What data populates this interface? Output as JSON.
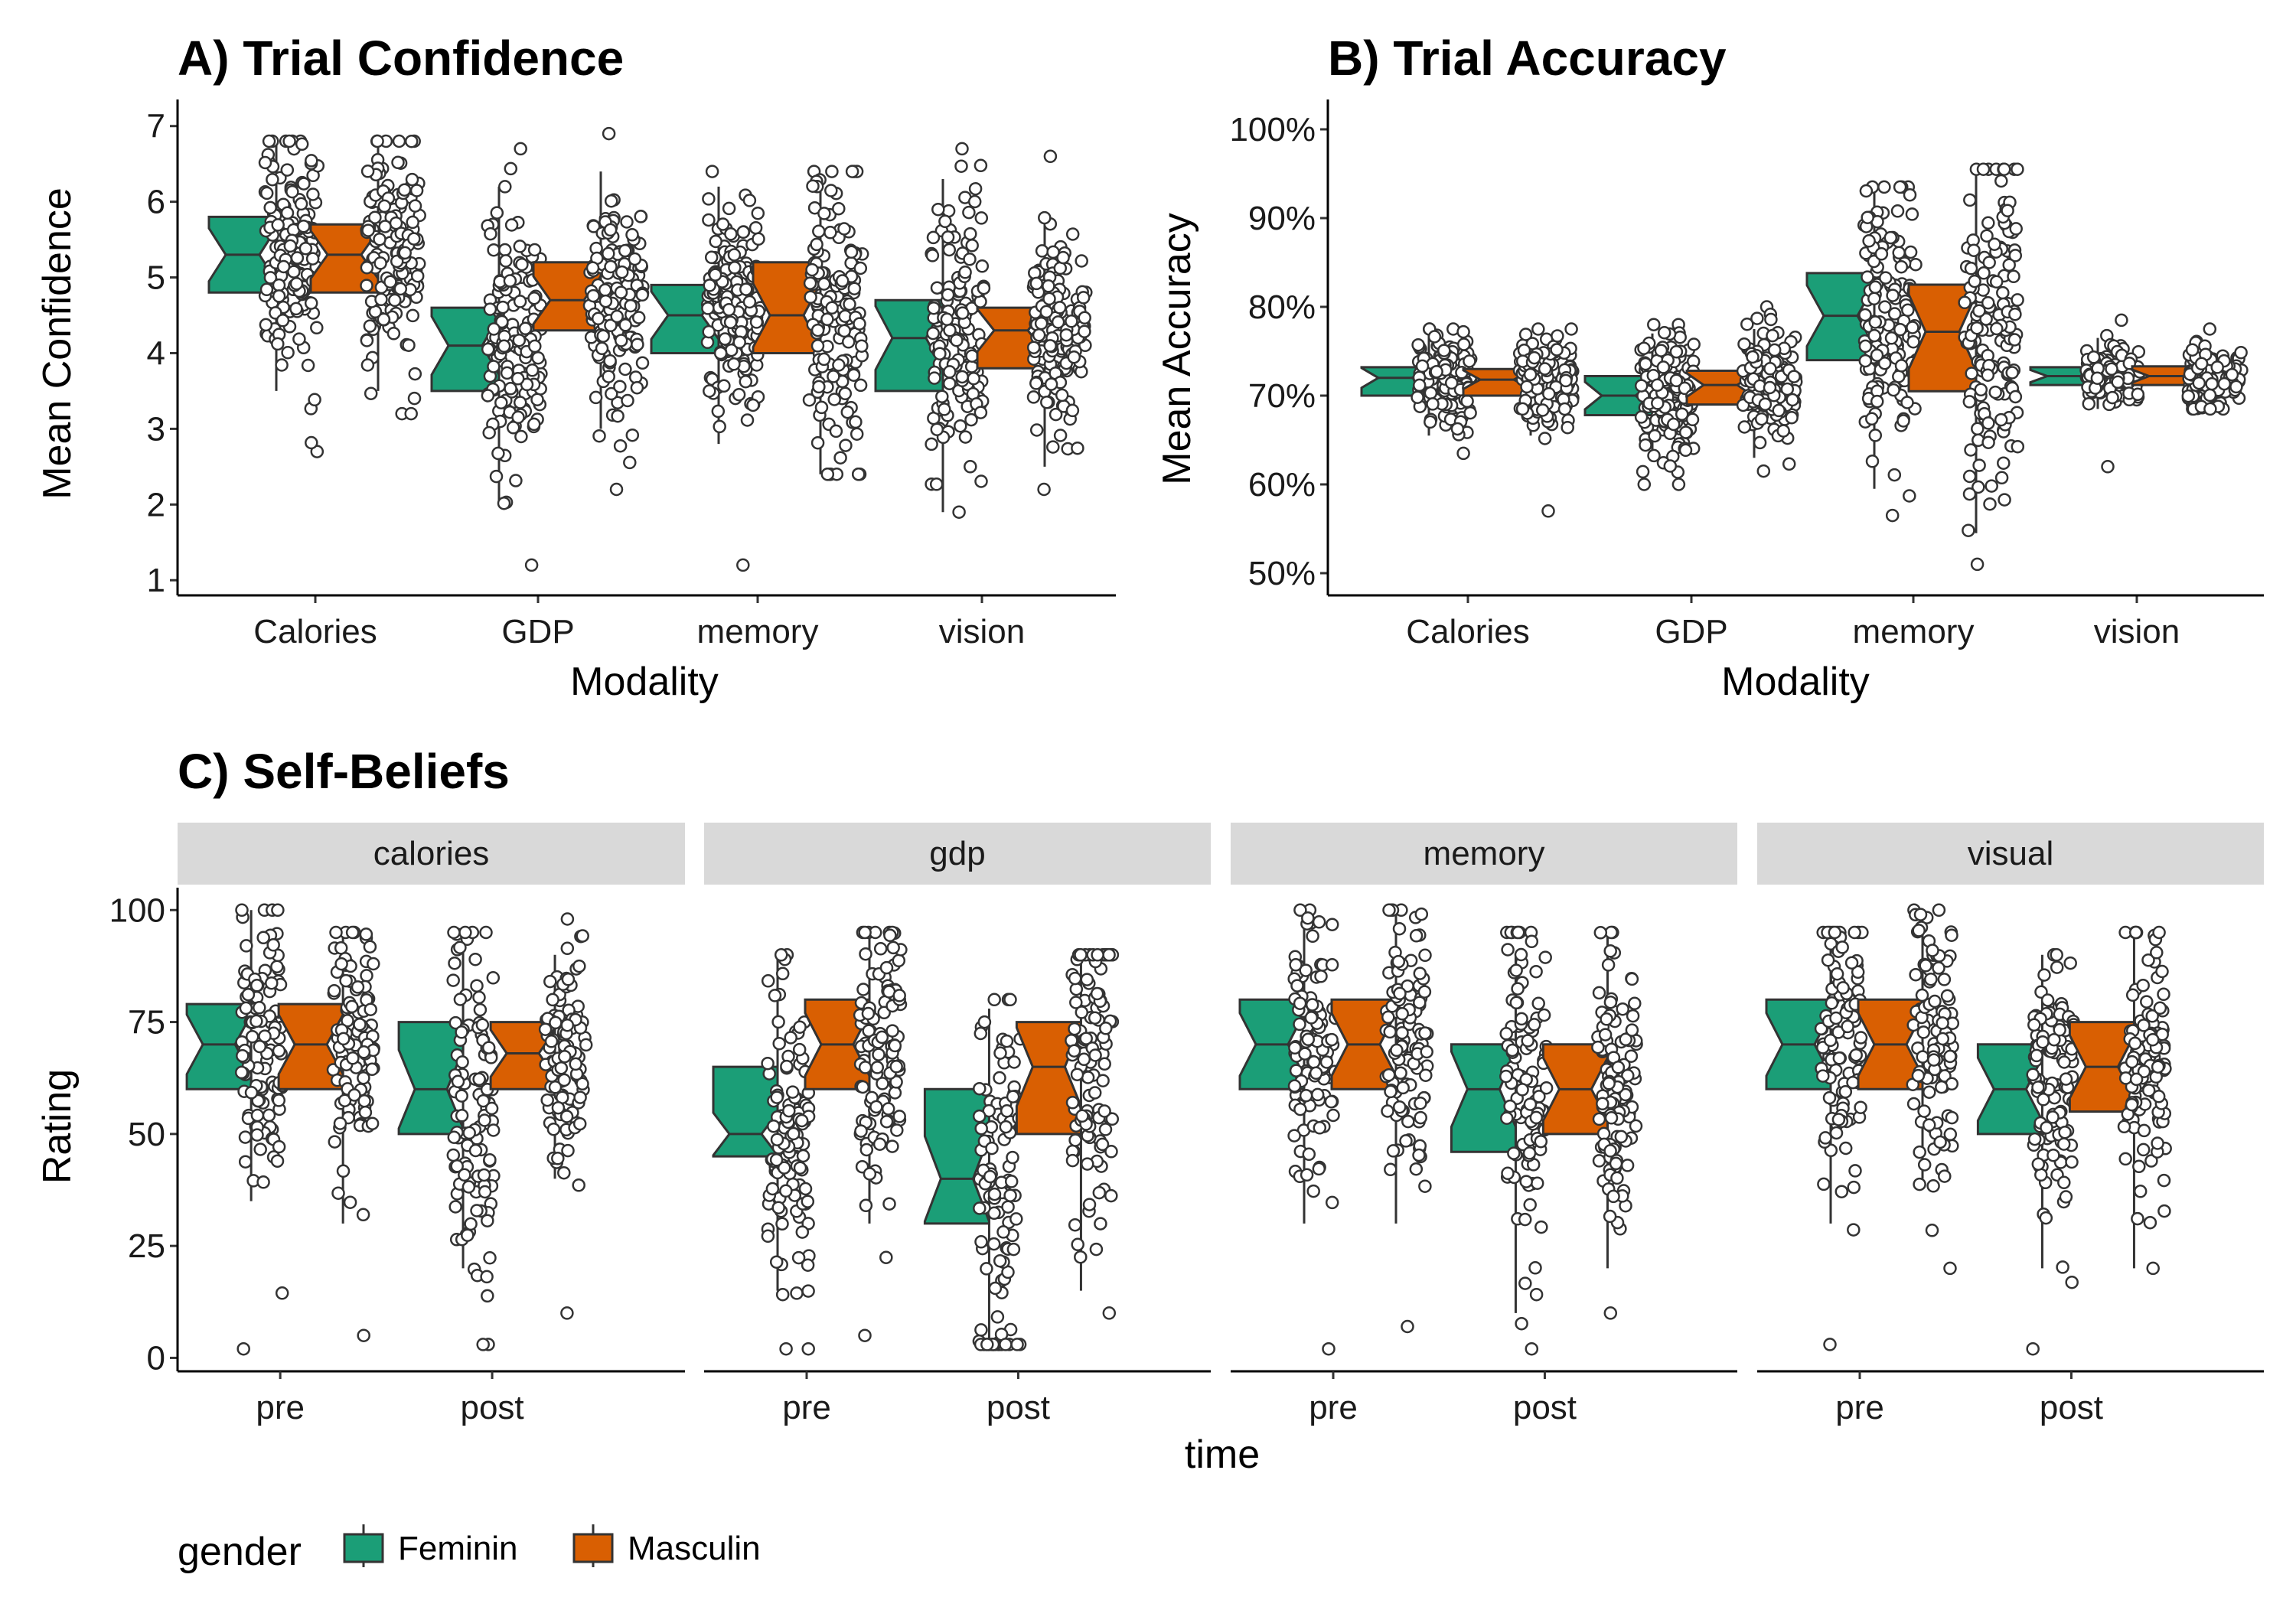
{
  "colors": {
    "Feminin": "#1B9E77",
    "Masculin": "#D95F02",
    "strip_bg": "#D9D9D9",
    "outline": "#333333"
  },
  "legend": {
    "title": "gender",
    "items": [
      "Feminin",
      "Masculin"
    ]
  },
  "chart_data": [
    {
      "id": "A",
      "type": "boxplot",
      "title": "A) Trial Confidence",
      "xlabel": "Modality",
      "ylabel": "Mean Confidence",
      "categories": [
        "Calories",
        "GDP",
        "memory",
        "vision"
      ],
      "ylim": [
        0.8,
        7.25
      ],
      "yticks": [
        1,
        2,
        3,
        4,
        5,
        6,
        7
      ],
      "ytick_labels": [
        "1",
        "2",
        "3",
        "4",
        "5",
        "6",
        "7"
      ],
      "notched": true,
      "series": [
        {
          "name": "Feminin",
          "boxes": [
            {
              "min": 3.5,
              "q1": 4.8,
              "median": 5.3,
              "q3": 5.8,
              "max": 6.8,
              "pts_range": [
                2.7,
                6.8
              ]
            },
            {
              "min": 2.0,
              "q1": 3.5,
              "median": 4.1,
              "q3": 4.6,
              "max": 6.2,
              "pts_range": [
                1.2,
                6.7
              ]
            },
            {
              "min": 2.8,
              "q1": 4.0,
              "median": 4.5,
              "q3": 4.9,
              "max": 6.2,
              "pts_range": [
                1.2,
                6.4
              ]
            },
            {
              "min": 1.9,
              "q1": 3.5,
              "median": 4.2,
              "q3": 4.7,
              "max": 6.3,
              "pts_range": [
                1.9,
                6.7
              ]
            }
          ]
        },
        {
          "name": "Masculin",
          "boxes": [
            {
              "min": 3.5,
              "q1": 4.8,
              "median": 5.3,
              "q3": 5.7,
              "max": 6.8,
              "pts_range": [
                3.2,
                6.8
              ]
            },
            {
              "min": 3.0,
              "q1": 4.3,
              "median": 4.7,
              "q3": 5.2,
              "max": 6.4,
              "pts_range": [
                2.2,
                6.9
              ]
            },
            {
              "min": 2.4,
              "q1": 4.0,
              "median": 4.5,
              "q3": 5.2,
              "max": 6.3,
              "pts_range": [
                2.4,
                6.4
              ]
            },
            {
              "min": 2.5,
              "q1": 3.8,
              "median": 4.3,
              "q3": 4.6,
              "max": 5.8,
              "pts_range": [
                2.2,
                6.6
              ]
            }
          ]
        }
      ]
    },
    {
      "id": "B",
      "type": "boxplot",
      "title": "B) Trial Accuracy",
      "xlabel": "Modality",
      "ylabel": "Mean Accuracy",
      "categories": [
        "Calories",
        "GDP",
        "memory",
        "vision"
      ],
      "ylim": [
        0.475,
        1.025
      ],
      "yticks": [
        0.5,
        0.6,
        0.7,
        0.8,
        0.9,
        1.0
      ],
      "ytick_labels": [
        "50%",
        "60%",
        "70%",
        "80%",
        "90%",
        "100%"
      ],
      "notched": true,
      "series": [
        {
          "name": "Feminin",
          "boxes": [
            {
              "min": 0.655,
              "q1": 0.7,
              "median": 0.72,
              "q3": 0.732,
              "max": 0.772,
              "pts_range": [
                0.635,
                0.775
              ]
            },
            {
              "min": 0.635,
              "q1": 0.678,
              "median": 0.7,
              "q3": 0.722,
              "max": 0.77,
              "pts_range": [
                0.6,
                0.78
              ]
            },
            {
              "min": 0.595,
              "q1": 0.74,
              "median": 0.79,
              "q3": 0.838,
              "max": 0.935,
              "pts_range": [
                0.565,
                0.935
              ]
            },
            {
              "min": 0.685,
              "q1": 0.712,
              "median": 0.722,
              "q3": 0.732,
              "max": 0.765,
              "pts_range": [
                0.62,
                0.785
              ]
            }
          ]
        },
        {
          "name": "Masculin",
          "boxes": [
            {
              "min": 0.655,
              "q1": 0.7,
              "median": 0.718,
              "q3": 0.73,
              "max": 0.772,
              "pts_range": [
                0.57,
                0.775
              ]
            },
            {
              "min": 0.63,
              "q1": 0.69,
              "median": 0.712,
              "q3": 0.728,
              "max": 0.775,
              "pts_range": [
                0.615,
                0.8
              ]
            },
            {
              "min": 0.545,
              "q1": 0.705,
              "median": 0.772,
              "q3": 0.825,
              "max": 0.95,
              "pts_range": [
                0.51,
                0.955
              ]
            },
            {
              "min": 0.685,
              "q1": 0.712,
              "median": 0.722,
              "q3": 0.733,
              "max": 0.765,
              "pts_range": [
                0.685,
                0.775
              ]
            }
          ]
        }
      ]
    },
    {
      "id": "C",
      "type": "boxplot",
      "title": "C) Self-Beliefs",
      "xlabel": "time",
      "ylabel": "Rating",
      "facets": [
        "calories",
        "gdp",
        "memory",
        "visual"
      ],
      "categories": [
        "pre",
        "post"
      ],
      "ylim": [
        -3,
        105
      ],
      "yticks": [
        0,
        25,
        50,
        75,
        100
      ],
      "ytick_labels": [
        "0",
        "25",
        "50",
        "75",
        "100"
      ],
      "notched": true,
      "panels": [
        {
          "facet": "calories",
          "series": [
            {
              "name": "Feminin",
              "boxes": [
                {
                  "min": 35,
                  "q1": 60,
                  "median": 70,
                  "q3": 79,
                  "max": 100,
                  "pts_range": [
                    2,
                    100
                  ]
                },
                {
                  "min": 20,
                  "q1": 50,
                  "median": 60,
                  "q3": 75,
                  "max": 95,
                  "pts_range": [
                    3,
                    95
                  ]
                }
              ]
            },
            {
              "name": "Masculin",
              "boxes": [
                {
                  "min": 30,
                  "q1": 60,
                  "median": 70,
                  "q3": 79,
                  "max": 95,
                  "pts_range": [
                    5,
                    95
                  ]
                },
                {
                  "min": 40,
                  "q1": 60,
                  "median": 68,
                  "q3": 75,
                  "max": 90,
                  "pts_range": [
                    10,
                    98
                  ]
                }
              ]
            }
          ]
        },
        {
          "facet": "gdp",
          "series": [
            {
              "name": "Feminin",
              "boxes": [
                {
                  "min": 15,
                  "q1": 45,
                  "median": 50,
                  "q3": 65,
                  "max": 90,
                  "pts_range": [
                    2,
                    90
                  ]
                },
                {
                  "min": 3,
                  "q1": 30,
                  "median": 40,
                  "q3": 60,
                  "max": 78,
                  "pts_range": [
                    3,
                    80
                  ]
                }
              ]
            },
            {
              "name": "Masculin",
              "boxes": [
                {
                  "min": 30,
                  "q1": 60,
                  "median": 70,
                  "q3": 80,
                  "max": 95,
                  "pts_range": [
                    5,
                    95
                  ]
                },
                {
                  "min": 15,
                  "q1": 50,
                  "median": 65,
                  "q3": 75,
                  "max": 90,
                  "pts_range": [
                    10,
                    90
                  ]
                }
              ]
            }
          ]
        },
        {
          "facet": "memory",
          "series": [
            {
              "name": "Feminin",
              "boxes": [
                {
                  "min": 30,
                  "q1": 60,
                  "median": 70,
                  "q3": 80,
                  "max": 100,
                  "pts_range": [
                    2,
                    100
                  ]
                },
                {
                  "min": 10,
                  "q1": 46,
                  "median": 60,
                  "q3": 70,
                  "max": 90,
                  "pts_range": [
                    2,
                    95
                  ]
                }
              ]
            },
            {
              "name": "Masculin",
              "boxes": [
                {
                  "min": 30,
                  "q1": 60,
                  "median": 70,
                  "q3": 80,
                  "max": 100,
                  "pts_range": [
                    7,
                    100
                  ]
                },
                {
                  "min": 20,
                  "q1": 50,
                  "median": 60,
                  "q3": 70,
                  "max": 95,
                  "pts_range": [
                    10,
                    95
                  ]
                }
              ]
            }
          ]
        },
        {
          "facet": "visual",
          "series": [
            {
              "name": "Feminin",
              "boxes": [
                {
                  "min": 30,
                  "q1": 60,
                  "median": 70,
                  "q3": 80,
                  "max": 95,
                  "pts_range": [
                    3,
                    95
                  ]
                },
                {
                  "min": 20,
                  "q1": 50,
                  "median": 60,
                  "q3": 70,
                  "max": 90,
                  "pts_range": [
                    2,
                    90
                  ]
                }
              ]
            },
            {
              "name": "Masculin",
              "boxes": [
                {
                  "min": 40,
                  "q1": 60,
                  "median": 70,
                  "q3": 80,
                  "max": 100,
                  "pts_range": [
                    20,
                    100
                  ]
                },
                {
                  "min": 20,
                  "q1": 55,
                  "median": 65,
                  "q3": 75,
                  "max": 95,
                  "pts_range": [
                    20,
                    95
                  ]
                }
              ]
            }
          ]
        }
      ]
    }
  ]
}
